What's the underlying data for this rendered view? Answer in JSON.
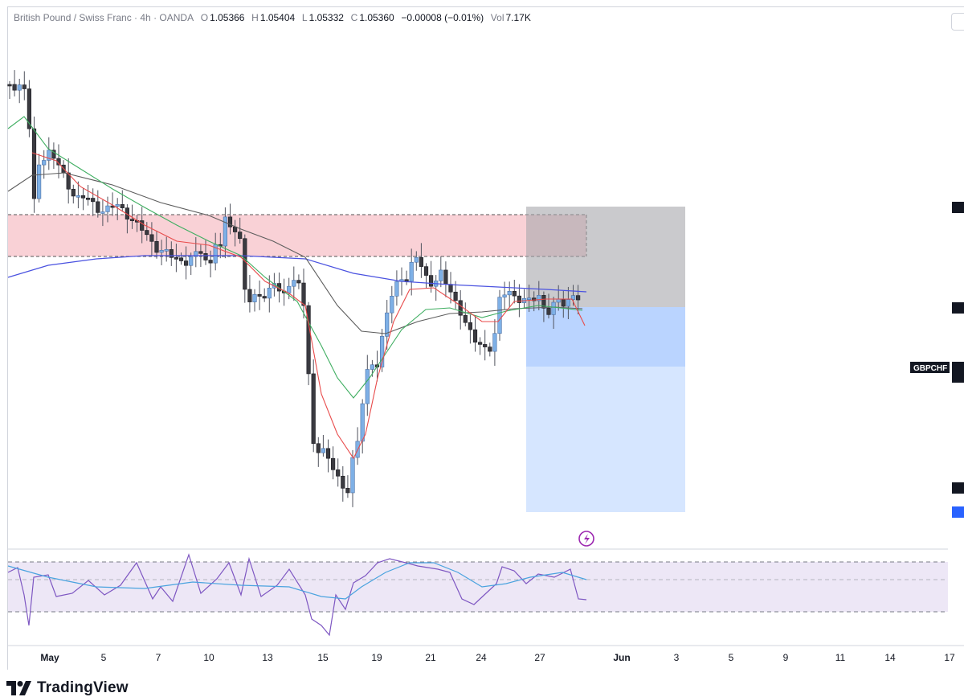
{
  "header": {
    "symbol": "British Pound / Swiss Franc · 4h · OANDA",
    "open_label": "O",
    "open": "1.05366",
    "high_label": "H",
    "high": "1.05404",
    "low_label": "L",
    "low": "1.05332",
    "close_label": "C",
    "close": "1.05360",
    "change": "−0.00008 (−0.01%)",
    "vol_label": "Vol",
    "vol": "7.17K"
  },
  "price_axis_label": "GBPCHF",
  "x_ticks": [
    {
      "label": "May",
      "bold": true
    },
    {
      "label": "5"
    },
    {
      "label": "7"
    },
    {
      "label": "10"
    },
    {
      "label": "13"
    },
    {
      "label": "15"
    },
    {
      "label": "19"
    },
    {
      "label": "21"
    },
    {
      "label": "24"
    },
    {
      "label": "27"
    },
    {
      "label": "Jun",
      "bold": true
    },
    {
      "label": "3"
    },
    {
      "label": "5"
    },
    {
      "label": "9"
    },
    {
      "label": "11"
    },
    {
      "label": "14"
    },
    {
      "label": "17"
    }
  ],
  "brand": {
    "name": "TradingView"
  },
  "colors": {
    "up": "#7eb0e6",
    "down": "#3a3a40",
    "wick": "#50535e",
    "ema_fast": "#e84b4b",
    "ema_mid": "#3fae61",
    "ma_slow": "#5d5d5d",
    "ma_long": "#4a52e0",
    "supply_zone": "#f8c9cf",
    "risk_zone": "#a6a7ab",
    "reward_zone": "#aecdff",
    "rsi_line": "#7e57c2",
    "rsi_ma": "#4aa3df",
    "rsi_band": "#ede7f6"
  },
  "rsi_levels": [
    "70",
    "50",
    "30"
  ],
  "chart_data": {
    "type": "candlestick",
    "symbol": "GBPCHF",
    "timeframe": "4h",
    "ohlc_last": {
      "open": 1.05366,
      "high": 1.05404,
      "low": 1.05332,
      "close": 1.0536
    }
  }
}
